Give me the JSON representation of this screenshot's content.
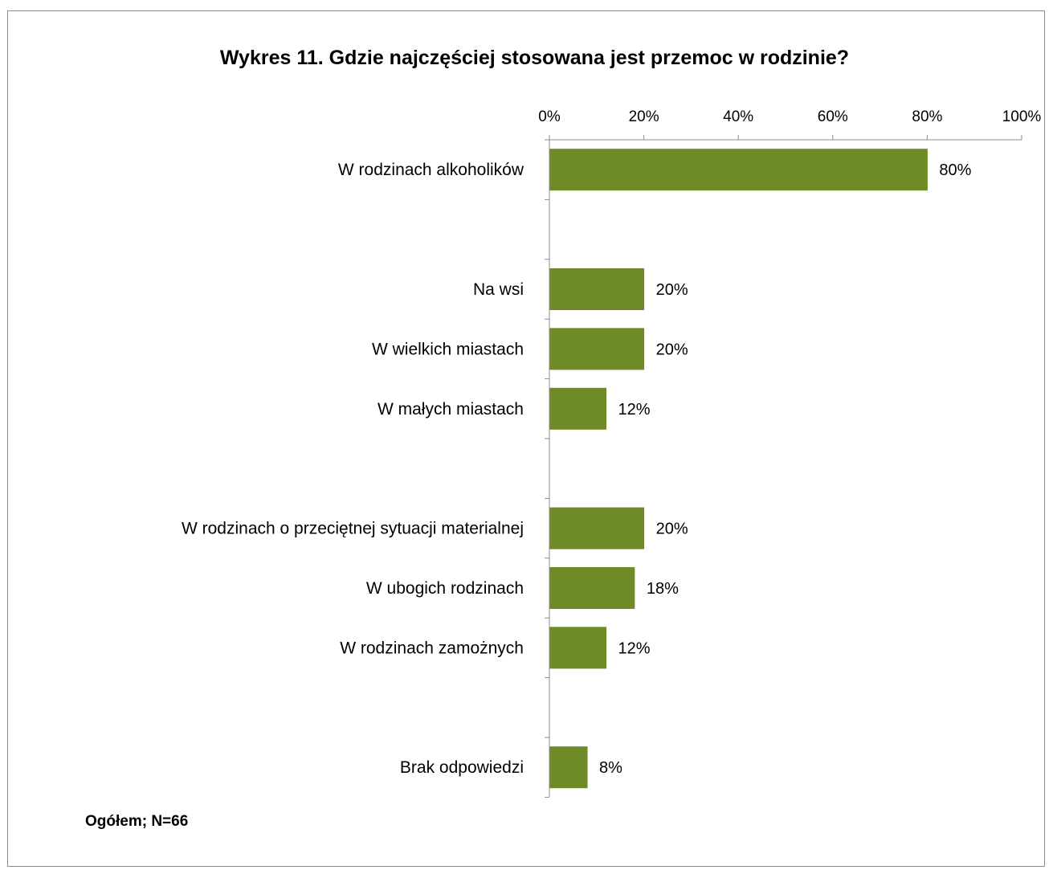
{
  "chart_data": {
    "type": "bar",
    "orientation": "horizontal",
    "title": "Wykres 11. Gdzie najczęściej stosowana jest przemoc w rodzinie?",
    "note": "Ogółem; N=66",
    "x_ticks": [
      "0%",
      "20%",
      "40%",
      "60%",
      "80%",
      "100%"
    ],
    "xlim": [
      0,
      100
    ],
    "bar_color": "#6e8b27",
    "grid": false,
    "categories": [
      "W rodzinach alkoholików",
      "",
      "Na wsi",
      "W wielkich miastach",
      "W małych miastach",
      "",
      "W rodzinach o przeciętnej sytuacji materialnej",
      "W ubogich rodzinach",
      "W rodzinach zamożnych",
      "",
      "Brak odpowiedzi"
    ],
    "values": [
      80,
      null,
      20,
      20,
      12,
      null,
      20,
      18,
      12,
      null,
      8
    ],
    "data_labels": [
      "80%",
      "",
      "20%",
      "20%",
      "12%",
      "",
      "20%",
      "18%",
      "12%",
      "",
      "8%"
    ]
  }
}
